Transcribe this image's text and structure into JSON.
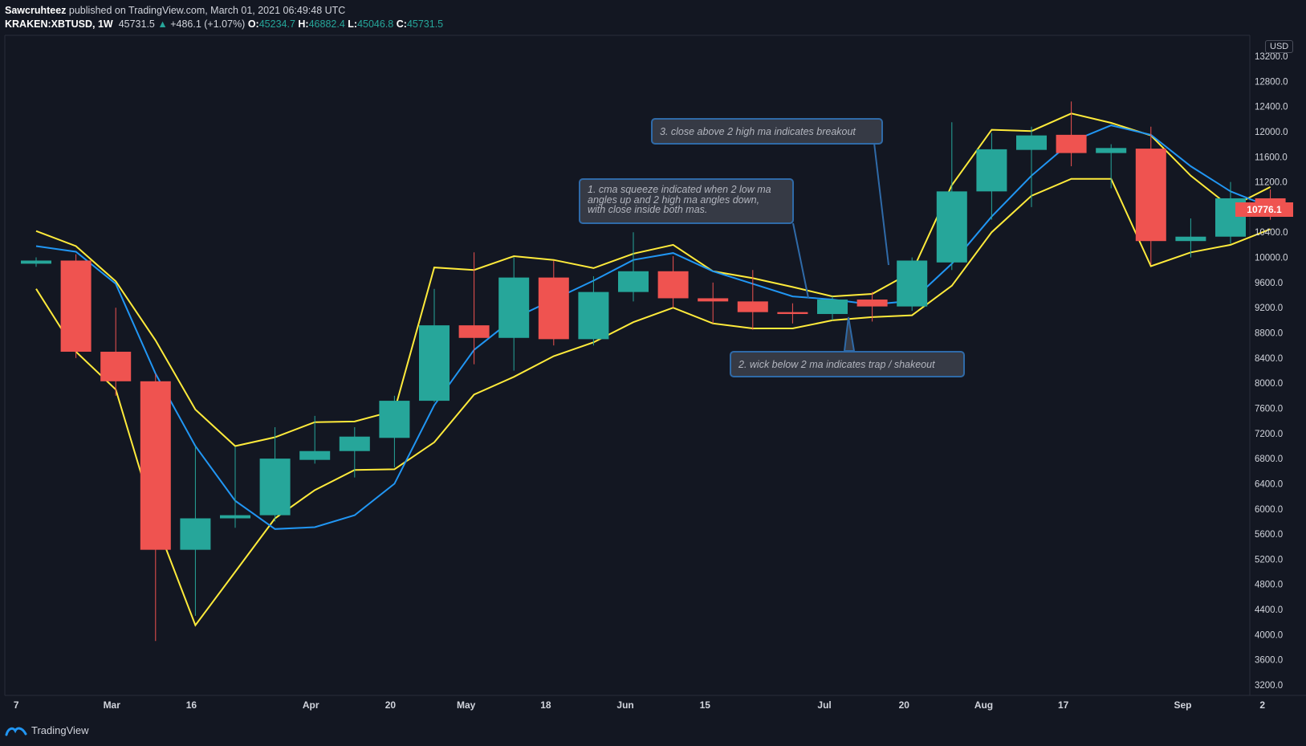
{
  "header": {
    "author": "Sawcruhteez",
    "published": "published on TradingView.com, March 01, 2021 06:49:48 UTC",
    "symbol": "KRAKEN:XBTUSD, 1W",
    "last": "45731.5",
    "change": "+486.1 (+1.07%)",
    "o_label": "O:",
    "o": "45234.7",
    "h_label": "H:",
    "h": "46882.4",
    "l_label": "L:",
    "l": "45046.8",
    "c_label": "C:",
    "c": "45731.5"
  },
  "axis": {
    "currency": "USD",
    "current_price": "10776.1"
  },
  "annotations": {
    "a1": [
      "1. cma squeeze indicated when 2 low ma",
      "angles up and 2 high ma angles down,",
      "with close inside both mas."
    ],
    "a2": "2. wick below 2 ma indicates trap / shakeout",
    "a3": "3. close above 2 high ma indicates breakout"
  },
  "footer": {
    "brand": "TradingView"
  },
  "colors": {
    "up": "#26a69a",
    "down": "#ef5350",
    "ma_yellow": "#ffeb3b",
    "ma_blue": "#2196f3",
    "background": "#131722",
    "callout_border": "#2f6aa8"
  },
  "chart_data": {
    "type": "candlestick",
    "title": "",
    "ylabel": "USD",
    "ylim": [
      3100,
      13400
    ],
    "ytick_labels": [
      "3200.0",
      "3600.0",
      "4000.0",
      "4400.0",
      "4800.0",
      "5200.0",
      "5600.0",
      "6000.0",
      "6400.0",
      "6800.0",
      "7200.0",
      "7600.0",
      "8000.0",
      "8400.0",
      "8800.0",
      "9200.0",
      "9600.0",
      "10000.0",
      "10400.0",
      "10800.0",
      "11200.0",
      "11600.0",
      "12000.0",
      "12400.0",
      "12800.0",
      "13200.0"
    ],
    "x_ticks": [
      {
        "label": "7",
        "i": -0.5
      },
      {
        "label": "Mar",
        "i": 1.9
      },
      {
        "label": "16",
        "i": 3.9
      },
      {
        "label": "Apr",
        "i": 6.9
      },
      {
        "label": "20",
        "i": 8.9
      },
      {
        "label": "May",
        "i": 10.8
      },
      {
        "label": "18",
        "i": 12.8
      },
      {
        "label": "Jun",
        "i": 14.8
      },
      {
        "label": "15",
        "i": 16.8
      },
      {
        "label": "Jul",
        "i": 19.8
      },
      {
        "label": "20",
        "i": 21.8
      },
      {
        "label": "Aug",
        "i": 23.8
      },
      {
        "label": "17",
        "i": 25.8
      },
      {
        "label": "Sep",
        "i": 28.8
      },
      {
        "label": "2",
        "i": 30.8
      }
    ],
    "candles": [
      {
        "o": 9900,
        "h": 10000,
        "l": 9850,
        "c": 9950
      },
      {
        "o": 9950,
        "h": 10050,
        "l": 8400,
        "c": 8500
      },
      {
        "o": 8500,
        "h": 9200,
        "l": 7800,
        "c": 8030
      },
      {
        "o": 8030,
        "h": 8150,
        "l": 3900,
        "c": 5350
      },
      {
        "o": 5350,
        "h": 7000,
        "l": 4300,
        "c": 5850
      },
      {
        "o": 5850,
        "h": 6990,
        "l": 5700,
        "c": 5900
      },
      {
        "o": 5900,
        "h": 7300,
        "l": 5800,
        "c": 6800
      },
      {
        "o": 6780,
        "h": 7480,
        "l": 6720,
        "c": 6920
      },
      {
        "o": 6920,
        "h": 7300,
        "l": 6500,
        "c": 7150
      },
      {
        "o": 7130,
        "h": 7800,
        "l": 6660,
        "c": 7720
      },
      {
        "o": 7720,
        "h": 9500,
        "l": 7700,
        "c": 8920
      },
      {
        "o": 8920,
        "h": 10080,
        "l": 8300,
        "c": 8720
      },
      {
        "o": 8720,
        "h": 10000,
        "l": 8200,
        "c": 9680
      },
      {
        "o": 9680,
        "h": 9950,
        "l": 8600,
        "c": 8700
      },
      {
        "o": 8700,
        "h": 9700,
        "l": 8600,
        "c": 9450
      },
      {
        "o": 9450,
        "h": 10400,
        "l": 9300,
        "c": 9780
      },
      {
        "o": 9780,
        "h": 10020,
        "l": 9200,
        "c": 9350
      },
      {
        "o": 9350,
        "h": 9600,
        "l": 8950,
        "c": 9300
      },
      {
        "o": 9300,
        "h": 9800,
        "l": 8850,
        "c": 9130
      },
      {
        "o": 9130,
        "h": 9270,
        "l": 8950,
        "c": 9100
      },
      {
        "o": 9100,
        "h": 9380,
        "l": 9000,
        "c": 9330
      },
      {
        "o": 9330,
        "h": 9450,
        "l": 8980,
        "c": 9220
      },
      {
        "o": 9220,
        "h": 10000,
        "l": 9150,
        "c": 9950
      },
      {
        "o": 9920,
        "h": 12150,
        "l": 9800,
        "c": 11050
      },
      {
        "o": 11050,
        "h": 11980,
        "l": 10600,
        "c": 11720
      },
      {
        "o": 11710,
        "h": 12080,
        "l": 10800,
        "c": 11940
      },
      {
        "o": 11950,
        "h": 12480,
        "l": 11450,
        "c": 11660
      },
      {
        "o": 11660,
        "h": 11800,
        "l": 11100,
        "c": 11740
      },
      {
        "o": 11730,
        "h": 12080,
        "l": 9880,
        "c": 10260
      },
      {
        "o": 10260,
        "h": 10620,
        "l": 10000,
        "c": 10330
      },
      {
        "o": 10330,
        "h": 11200,
        "l": 10220,
        "c": 10940
      },
      {
        "o": 10940,
        "h": 11080,
        "l": 10600,
        "c": 10776
      }
    ],
    "series": [
      {
        "color": "#ffeb3b",
        "values": [
          10420,
          10180,
          9620,
          8680,
          7580,
          7000,
          7140,
          7380,
          7390,
          7560,
          9840,
          9800,
          10020,
          9960,
          9830,
          10060,
          10200,
          9780,
          9670,
          9530,
          9380,
          9420,
          9770,
          11150,
          12030,
          12010,
          12290,
          12140,
          11940,
          11300,
          10800,
          11120
        ]
      },
      {
        "color": "#ffeb3b",
        "values": [
          9500,
          8500,
          7900,
          5800,
          4150,
          5000,
          5850,
          6300,
          6620,
          6630,
          7060,
          7820,
          8100,
          8430,
          8650,
          8970,
          9200,
          8950,
          8870,
          8870,
          9000,
          9050,
          9080,
          9550,
          10400,
          10980,
          11250,
          11250,
          9860,
          10080,
          10200,
          10450
        ]
      },
      {
        "color": "#2196f3",
        "values": [
          10180,
          10090,
          9580,
          8150,
          7000,
          6130,
          5680,
          5710,
          5900,
          6400,
          7650,
          8530,
          9030,
          9330,
          9630,
          9960,
          10070,
          9780,
          9580,
          9380,
          9330,
          9250,
          9310,
          9900,
          10650,
          11300,
          11840,
          12100,
          11950,
          11450,
          11050,
          10800
        ]
      }
    ]
  }
}
